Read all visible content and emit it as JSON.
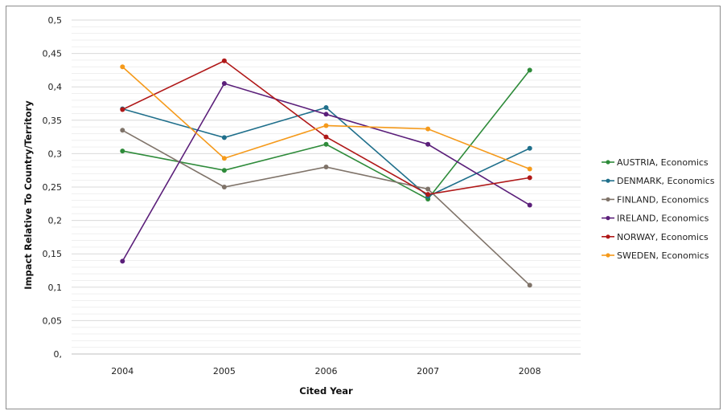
{
  "chart_data": {
    "type": "line",
    "title": "",
    "xlabel": "Cited Year",
    "ylabel": "Impact Relative To Country/Territory",
    "x": [
      "2004",
      "2005",
      "2006",
      "2007",
      "2008"
    ],
    "ylim": [
      0,
      0.5
    ],
    "yticks": [
      {
        "value": 0,
        "label": "0,"
      },
      {
        "value": 0.05,
        "label": "0,05"
      },
      {
        "value": 0.1,
        "label": "0,1"
      },
      {
        "value": 0.15,
        "label": "0,15"
      },
      {
        "value": 0.2,
        "label": "0,2"
      },
      {
        "value": 0.25,
        "label": "0,25"
      },
      {
        "value": 0.3,
        "label": "0,3"
      },
      {
        "value": 0.35,
        "label": "0,35"
      },
      {
        "value": 0.4,
        "label": "0,4"
      },
      {
        "value": 0.45,
        "label": "0,45"
      },
      {
        "value": 0.5,
        "label": "0,5"
      }
    ],
    "grid": true,
    "legend_position": "right",
    "series": [
      {
        "name": "AUSTRIA, Economics",
        "color": "#2e8b3a",
        "values": [
          0.304,
          0.275,
          0.314,
          0.232,
          0.425
        ]
      },
      {
        "name": "DENMARK, Economics",
        "color": "#1f6f8b",
        "values": [
          0.367,
          0.324,
          0.369,
          0.236,
          0.308
        ]
      },
      {
        "name": "FINLAND, Economics",
        "color": "#7f7369",
        "values": [
          0.335,
          0.25,
          0.28,
          0.247,
          0.103
        ]
      },
      {
        "name": "IRELAND, Economics",
        "color": "#5b1f7a",
        "values": [
          0.139,
          0.405,
          0.359,
          0.314,
          0.223
        ]
      },
      {
        "name": "NORWAY, Economics",
        "color": "#b01818",
        "values": [
          0.366,
          0.439,
          0.325,
          0.239,
          0.264
        ]
      },
      {
        "name": "SWEDEN, Economics",
        "color": "#f59a1b",
        "values": [
          0.43,
          0.293,
          0.342,
          0.337,
          0.277
        ]
      }
    ]
  }
}
